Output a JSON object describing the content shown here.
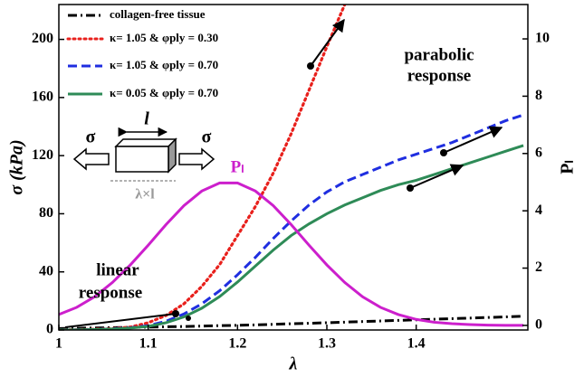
{
  "chart_data": {
    "type": "line",
    "xlabel": "λ",
    "ylabel": "σ (kPa)",
    "y2label": "Pₗ",
    "x": [
      1.0,
      1.02,
      1.04,
      1.06,
      1.08,
      1.1,
      1.12,
      1.14,
      1.16,
      1.18,
      1.2,
      1.22,
      1.24,
      1.26,
      1.28,
      1.3,
      1.32,
      1.34,
      1.36,
      1.38,
      1.4,
      1.42,
      1.44,
      1.46,
      1.48,
      1.5,
      1.52
    ],
    "series": [
      {
        "name": "collagen-free tissue",
        "color": "#000000",
        "dash": "dashdot",
        "values": [
          1,
          1.2,
          1.4,
          1.6,
          1.8,
          2,
          2.2,
          2.4,
          2.7,
          3,
          3.2,
          3.5,
          3.9,
          4.3,
          4.6,
          5,
          5.4,
          5.8,
          6.2,
          6.6,
          7,
          7.4,
          7.8,
          8.2,
          8.6,
          9,
          9.5
        ]
      },
      {
        "name": "κ= 1.05 & φply = 0.30",
        "color": "#e8201c",
        "dash": "dotted",
        "values": [
          0,
          0.2,
          0.5,
          1,
          2,
          5,
          10,
          18,
          30,
          45,
          65,
          85,
          108,
          135,
          165,
          195,
          224,
          null,
          null,
          null,
          null,
          null,
          null,
          null,
          null,
          null,
          null
        ]
      },
      {
        "name": "κ= 1.05 & φply = 0.70",
        "color": "#1f2ee0",
        "dash": "dashed",
        "values": [
          0,
          0.1,
          0.3,
          0.8,
          1.5,
          3,
          6,
          11,
          18,
          27,
          38,
          50,
          63,
          75,
          86,
          95,
          102,
          107,
          112,
          117,
          121,
          125,
          129,
          134,
          139,
          144,
          148
        ]
      },
      {
        "name": "κ= 0.05 & φply = 0.70",
        "color": "#2e8b57",
        "dash": "solid",
        "values": [
          0,
          0.1,
          0.3,
          0.7,
          1.3,
          2.5,
          5,
          9,
          15,
          23,
          33,
          44,
          55,
          65,
          73,
          80,
          86,
          91,
          96,
          100,
          103,
          107,
          111,
          115,
          119,
          123,
          127
        ]
      },
      {
        "color": "#cc1fcc",
        "dash": "solid",
        "axis": "y2",
        "values": [
          0.38,
          0.63,
          1.0,
          1.5,
          2.11,
          2.8,
          3.52,
          4.18,
          4.69,
          4.97,
          4.97,
          4.69,
          4.18,
          3.52,
          2.8,
          2.11,
          1.5,
          1.0,
          0.63,
          0.38,
          0.21,
          0.11,
          0.06,
          0.03,
          0.01,
          0,
          0
        ]
      }
    ],
    "xlim": [
      1,
      1.525
    ],
    "xticks": [
      1,
      1.1,
      1.2,
      1.3,
      1.4
    ],
    "ylim": [
      0,
      224
    ],
    "yticks": [
      0,
      40,
      80,
      120,
      160,
      200
    ],
    "y2lim": [
      -0.16,
      11.2
    ],
    "y2ticks": [
      0,
      2,
      4,
      6,
      8,
      10
    ],
    "legend": "upper left",
    "grid": false,
    "annotations": [
      "parabolic",
      "response",
      "linear",
      "response",
      "Pₗ"
    ],
    "inset": {
      "left_load": "σ",
      "right_load": "σ",
      "length": "l",
      "stretched_length": "λ×l"
    }
  }
}
